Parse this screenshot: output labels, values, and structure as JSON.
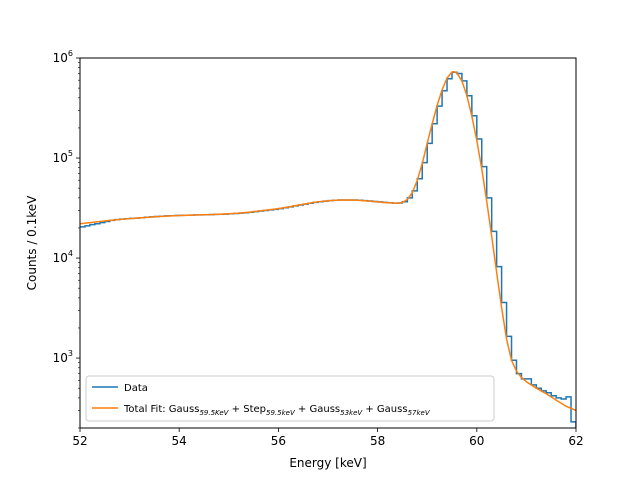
{
  "chart_data": {
    "type": "line",
    "xlabel": "Energy [keV]",
    "ylabel": "Counts / 0.1keV",
    "xlim": [
      52,
      62
    ],
    "ylim": [
      200,
      1000000
    ],
    "yscale": "log",
    "grid": false,
    "legend_placement": "lower-left",
    "x_ticks": [
      52,
      54,
      56,
      58,
      60,
      62
    ],
    "y_ticks": [
      {
        "value": 1000,
        "base": "10",
        "exp": "3"
      },
      {
        "value": 10000,
        "base": "10",
        "exp": "4"
      },
      {
        "value": 100000,
        "base": "10",
        "exp": "5"
      },
      {
        "value": 1000000,
        "base": "10",
        "exp": "6"
      }
    ],
    "legend": {
      "data_label": "Data",
      "fit_label_parts": [
        {
          "t": "Total Fit: Gauss"
        },
        {
          "t": "59.5KeV",
          "sub": true
        },
        {
          "t": " + Step"
        },
        {
          "t": "59.5keV",
          "sub": true
        },
        {
          "t": " + Gauss"
        },
        {
          "t": "53keV",
          "sub": true
        },
        {
          "t": " + Gauss"
        },
        {
          "t": "57keV",
          "sub": true
        }
      ]
    },
    "series": [
      {
        "name": "Data",
        "kind": "histogram-step",
        "color": "#1f77b4",
        "bins": [
          [
            52.0,
            20500
          ],
          [
            52.1,
            21000
          ],
          [
            52.2,
            21600
          ],
          [
            52.3,
            22000
          ],
          [
            52.4,
            22600
          ],
          [
            52.5,
            23200
          ],
          [
            52.6,
            23800
          ],
          [
            52.7,
            24200
          ],
          [
            52.8,
            24500
          ],
          [
            52.9,
            24700
          ],
          [
            53.0,
            24900
          ],
          [
            53.1,
            25100
          ],
          [
            53.2,
            25300
          ],
          [
            53.3,
            25600
          ],
          [
            53.4,
            25800
          ],
          [
            53.5,
            26000
          ],
          [
            53.6,
            26200
          ],
          [
            53.7,
            26400
          ],
          [
            53.8,
            26500
          ],
          [
            53.9,
            26600
          ],
          [
            54.0,
            26700
          ],
          [
            54.1,
            26800
          ],
          [
            54.2,
            26900
          ],
          [
            54.3,
            27000
          ],
          [
            54.4,
            27000
          ],
          [
            54.5,
            27100
          ],
          [
            54.6,
            27200
          ],
          [
            54.7,
            27300
          ],
          [
            54.8,
            27400
          ],
          [
            54.9,
            27500
          ],
          [
            55.0,
            27700
          ],
          [
            55.1,
            27900
          ],
          [
            55.2,
            28100
          ],
          [
            55.3,
            28400
          ],
          [
            55.4,
            28700
          ],
          [
            55.5,
            29100
          ],
          [
            55.6,
            29500
          ],
          [
            55.7,
            29900
          ],
          [
            55.8,
            30300
          ],
          [
            55.9,
            30700
          ],
          [
            56.0,
            31200
          ],
          [
            56.1,
            31800
          ],
          [
            56.2,
            32500
          ],
          [
            56.3,
            33200
          ],
          [
            56.4,
            33900
          ],
          [
            56.5,
            34600
          ],
          [
            56.6,
            35300
          ],
          [
            56.7,
            36000
          ],
          [
            56.8,
            36600
          ],
          [
            56.9,
            37100
          ],
          [
            57.0,
            37500
          ],
          [
            57.1,
            37800
          ],
          [
            57.2,
            38000
          ],
          [
            57.3,
            38100
          ],
          [
            57.4,
            38100
          ],
          [
            57.5,
            38000
          ],
          [
            57.6,
            37800
          ],
          [
            57.7,
            37500
          ],
          [
            57.8,
            37200
          ],
          [
            57.9,
            36800
          ],
          [
            58.0,
            36400
          ],
          [
            58.1,
            36000
          ],
          [
            58.2,
            35700
          ],
          [
            58.3,
            35400
          ],
          [
            58.4,
            35500
          ],
          [
            58.5,
            36500
          ],
          [
            58.6,
            40000
          ],
          [
            58.7,
            47000
          ],
          [
            58.8,
            62000
          ],
          [
            58.9,
            90000
          ],
          [
            59.0,
            140000
          ],
          [
            59.1,
            220000
          ],
          [
            59.2,
            330000
          ],
          [
            59.3,
            470000
          ],
          [
            59.4,
            620000
          ],
          [
            59.5,
            720000
          ],
          [
            59.6,
            700000
          ],
          [
            59.7,
            590000
          ],
          [
            59.8,
            420000
          ],
          [
            59.9,
            265000
          ],
          [
            60.0,
            155000
          ],
          [
            60.1,
            82000
          ],
          [
            60.2,
            40000
          ],
          [
            60.3,
            18500
          ],
          [
            60.4,
            8200
          ],
          [
            60.5,
            3600
          ],
          [
            60.6,
            1650
          ],
          [
            60.7,
            950
          ],
          [
            60.8,
            700
          ],
          [
            60.9,
            620
          ],
          [
            61.0,
            620
          ],
          [
            61.1,
            540
          ],
          [
            61.2,
            500
          ],
          [
            61.3,
            470
          ],
          [
            61.4,
            450
          ],
          [
            61.5,
            420
          ],
          [
            61.6,
            400
          ],
          [
            61.7,
            390
          ],
          [
            61.8,
            410
          ],
          [
            61.9,
            230
          ]
        ]
      },
      {
        "name": "Total Fit: Gauss59.5KeV + Step59.5keV + Gauss53keV + Gauss57keV",
        "kind": "line",
        "color": "#ff7f0e",
        "points": [
          [
            52.0,
            22000
          ],
          [
            52.2,
            22600
          ],
          [
            52.4,
            23200
          ],
          [
            52.6,
            23800
          ],
          [
            52.8,
            24300
          ],
          [
            53.0,
            24800
          ],
          [
            53.2,
            25200
          ],
          [
            53.4,
            25600
          ],
          [
            53.6,
            26000
          ],
          [
            53.8,
            26300
          ],
          [
            54.0,
            26600
          ],
          [
            54.2,
            26800
          ],
          [
            54.4,
            27000
          ],
          [
            54.6,
            27200
          ],
          [
            54.8,
            27400
          ],
          [
            55.0,
            27700
          ],
          [
            55.2,
            28100
          ],
          [
            55.4,
            28700
          ],
          [
            55.6,
            29500
          ],
          [
            55.8,
            30300
          ],
          [
            56.0,
            31200
          ],
          [
            56.2,
            32400
          ],
          [
            56.4,
            33800
          ],
          [
            56.6,
            35200
          ],
          [
            56.8,
            36500
          ],
          [
            57.0,
            37400
          ],
          [
            57.2,
            37900
          ],
          [
            57.4,
            38100
          ],
          [
            57.6,
            37800
          ],
          [
            57.8,
            37200
          ],
          [
            58.0,
            36400
          ],
          [
            58.2,
            35700
          ],
          [
            58.4,
            35300
          ],
          [
            58.5,
            36000
          ],
          [
            58.6,
            38500
          ],
          [
            58.7,
            45000
          ],
          [
            58.8,
            60000
          ],
          [
            58.9,
            88000
          ],
          [
            59.0,
            140000
          ],
          [
            59.1,
            220000
          ],
          [
            59.2,
            335000
          ],
          [
            59.3,
            480000
          ],
          [
            59.4,
            630000
          ],
          [
            59.5,
            725000
          ],
          [
            59.55,
            730000
          ],
          [
            59.6,
            705000
          ],
          [
            59.7,
            590000
          ],
          [
            59.8,
            420000
          ],
          [
            59.9,
            262000
          ],
          [
            60.0,
            150000
          ],
          [
            60.1,
            78000
          ],
          [
            60.2,
            37000
          ],
          [
            60.3,
            16500
          ],
          [
            60.4,
            7200
          ],
          [
            60.5,
            3200
          ],
          [
            60.6,
            1550
          ],
          [
            60.7,
            950
          ],
          [
            60.8,
            740
          ],
          [
            60.9,
            640
          ],
          [
            61.0,
            580
          ],
          [
            61.2,
            500
          ],
          [
            61.4,
            440
          ],
          [
            61.6,
            380
          ],
          [
            61.8,
            330
          ],
          [
            62.0,
            300
          ]
        ]
      }
    ]
  }
}
